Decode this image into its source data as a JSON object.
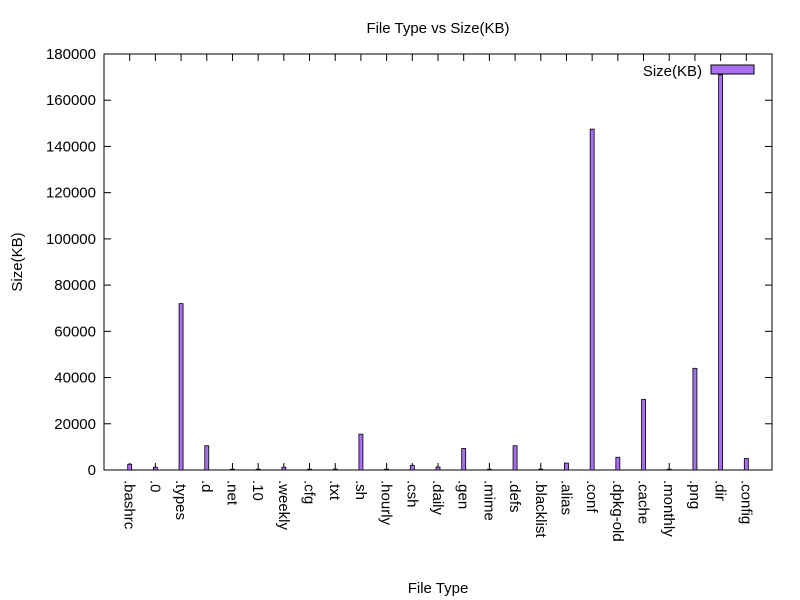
{
  "chart_data": {
    "type": "bar",
    "title": "File Type vs Size(KB)",
    "xlabel": "File Type",
    "ylabel": "Size(KB)",
    "ylim": [
      0,
      180000
    ],
    "yticks": [
      0,
      20000,
      40000,
      60000,
      80000,
      100000,
      120000,
      140000,
      160000,
      180000
    ],
    "grid": false,
    "legend_position": "top-right",
    "bar_color": "#a86ff0",
    "categories": [
      ".bashrc",
      ".0",
      ".types",
      ".d",
      ".net",
      ".10",
      ".weekly",
      ".cfg",
      ".txt",
      ".sh",
      ".hourly",
      ".csh",
      ".daily",
      ".gen",
      ".mime",
      ".defs",
      ".blacklist",
      ".alias",
      ".conf",
      ".dpkg-old",
      ".cache",
      ".monthly",
      ".png",
      ".dir",
      ".config"
    ],
    "series": [
      {
        "name": "Size(KB)",
        "values": [
          2500,
          1200,
          72000,
          10500,
          100,
          300,
          1200,
          100,
          400,
          15500,
          100,
          2000,
          1300,
          9300,
          100,
          10500,
          400,
          3000,
          147500,
          5500,
          30500,
          100,
          44000,
          171000,
          5000
        ]
      }
    ]
  }
}
